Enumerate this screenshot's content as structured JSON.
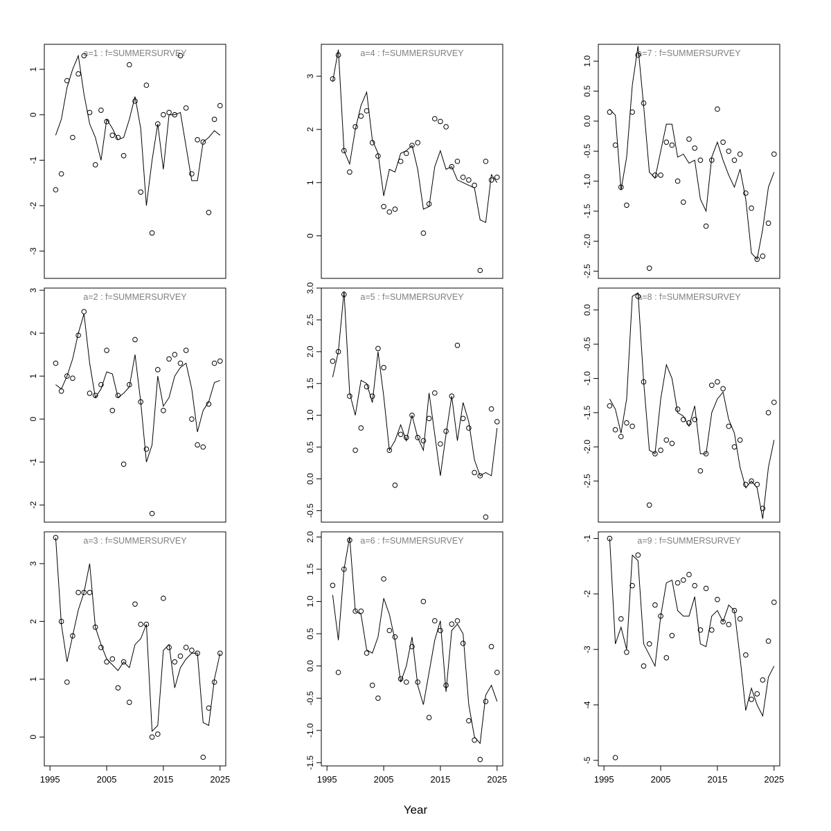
{
  "chart_data": {
    "type": "line",
    "subtype": "multi-panel scatter with fitted line, 3x3 grid (row-major)",
    "xlabel": "Year",
    "xlim": [
      1994,
      2026
    ],
    "x_ticks": [
      1995,
      2005,
      2015,
      2025
    ],
    "years": [
      1996,
      1997,
      1998,
      1999,
      2000,
      2001,
      2002,
      2003,
      2004,
      2005,
      2006,
      2007,
      2008,
      2009,
      2010,
      2011,
      2012,
      2013,
      2014,
      2015,
      2016,
      2017,
      2018,
      2019,
      2020,
      2021,
      2022,
      2023,
      2024,
      2025
    ],
    "legend": {
      "points": "observed (open circles)",
      "line": "fitted (solid line)"
    },
    "styles": {
      "background": "#ffffff",
      "line_color": "#000000",
      "point_color": "#000000",
      "axis_color": "#000000",
      "title_color": "#808080"
    },
    "panels": [
      {
        "id": "a1",
        "title": "a=1  :  f=SUMMERSURVEY",
        "ylim": [
          -3.6,
          1.55
        ],
        "yticks": [
          "-3",
          "-2",
          "-1",
          "0",
          "1"
        ],
        "points": [
          -1.65,
          -1.3,
          0.75,
          -0.5,
          0.9,
          1.3,
          0.05,
          -1.1,
          0.1,
          -0.15,
          -0.45,
          -0.5,
          -0.9,
          1.1,
          0.3,
          -1.7,
          0.65,
          -2.6,
          -0.2,
          0.0,
          0.05,
          0.0,
          1.3,
          0.15,
          -1.3,
          -0.55,
          -0.6,
          -2.15,
          -0.1,
          0.2
        ],
        "line": [
          -0.45,
          -0.1,
          0.6,
          1.0,
          1.3,
          0.45,
          -0.2,
          -0.5,
          -1.0,
          -0.1,
          -0.3,
          -0.55,
          -0.5,
          -0.1,
          0.4,
          -0.3,
          -2.0,
          -1.0,
          -0.2,
          -1.2,
          0.0,
          0.0,
          0.05,
          -0.7,
          -1.45,
          -1.45,
          -0.6,
          -0.5,
          -0.35,
          -0.45
        ]
      },
      {
        "id": "a4",
        "title": "a=4  :  f=SUMMERSURVEY",
        "ylim": [
          -0.8,
          3.6
        ],
        "yticks": [
          "0",
          "1",
          "2",
          "3"
        ],
        "points": [
          2.95,
          3.4,
          1.6,
          1.2,
          2.05,
          2.25,
          2.35,
          1.75,
          1.5,
          0.55,
          0.45,
          0.5,
          1.4,
          1.55,
          1.7,
          1.75,
          0.05,
          0.6,
          2.2,
          2.15,
          2.05,
          1.3,
          1.4,
          1.1,
          1.05,
          0.95,
          -0.65,
          1.4,
          1.05,
          1.1
        ],
        "line": [
          2.9,
          3.5,
          1.6,
          1.35,
          2.0,
          2.45,
          2.7,
          1.8,
          1.55,
          0.75,
          1.25,
          1.2,
          1.55,
          1.6,
          1.7,
          1.25,
          0.5,
          0.55,
          1.3,
          1.6,
          1.25,
          1.3,
          1.05,
          1.0,
          0.95,
          0.9,
          0.3,
          0.25,
          1.15,
          1.0
        ]
      },
      {
        "id": "a7",
        "title": "a=7  :  f=SUMMERSURVEY",
        "ylim": [
          -2.62,
          1.28
        ],
        "yticks": [
          "-2.5",
          "-2.0",
          "-1.5",
          "-1.0",
          "-0.5",
          "0.0",
          "0.5",
          "1.0"
        ],
        "points": [
          0.15,
          -0.4,
          -1.1,
          -1.4,
          0.15,
          1.1,
          0.3,
          -2.45,
          -0.9,
          -0.9,
          -0.35,
          -0.4,
          -1.0,
          -1.35,
          -0.3,
          -0.45,
          -0.65,
          -1.75,
          -0.65,
          0.2,
          -0.35,
          -0.5,
          -0.65,
          -0.55,
          -1.2,
          -1.45,
          -2.3,
          -2.25,
          -1.7,
          -0.55
        ],
        "line": [
          0.2,
          0.1,
          -1.15,
          -0.6,
          0.6,
          1.25,
          0.25,
          -0.85,
          -0.95,
          -0.5,
          -0.05,
          -0.05,
          -0.6,
          -0.55,
          -0.7,
          -0.65,
          -1.3,
          -1.5,
          -0.6,
          -0.35,
          -0.65,
          -0.9,
          -1.1,
          -0.8,
          -1.3,
          -2.2,
          -2.3,
          -1.8,
          -1.1,
          -0.85
        ]
      },
      {
        "id": "a2",
        "title": "a=2  :  f=SUMMERSURVEY",
        "ylim": [
          -2.4,
          3.05
        ],
        "yticks": [
          "-2",
          "-1",
          "0",
          "1",
          "2",
          "3"
        ],
        "points": [
          1.3,
          0.65,
          1.0,
          0.95,
          1.95,
          2.5,
          0.6,
          0.55,
          0.8,
          1.6,
          0.2,
          0.55,
          -1.05,
          0.8,
          1.85,
          0.4,
          -0.7,
          -2.2,
          1.15,
          0.2,
          1.4,
          1.5,
          1.3,
          1.6,
          0.0,
          -0.6,
          -0.65,
          0.35,
          1.3,
          1.35
        ],
        "line": [
          0.8,
          0.7,
          1.0,
          1.4,
          2.0,
          2.45,
          1.3,
          0.5,
          0.7,
          1.1,
          1.05,
          0.5,
          0.6,
          0.75,
          1.5,
          0.4,
          -1.0,
          -0.6,
          1.0,
          0.3,
          0.5,
          1.0,
          1.2,
          1.3,
          0.7,
          -0.3,
          0.2,
          0.4,
          0.85,
          0.9
        ]
      },
      {
        "id": "a5",
        "title": "a=5  :  f=SUMMERSURVEY",
        "ylim": [
          -0.68,
          3.0
        ],
        "yticks": [
          "-0.5",
          "0.0",
          "0.5",
          "1.0",
          "1.5",
          "2.0",
          "2.5",
          "3.0"
        ],
        "points": [
          1.85,
          2.0,
          2.9,
          1.3,
          0.45,
          0.8,
          1.45,
          1.3,
          2.05,
          1.75,
          0.45,
          -0.1,
          0.7,
          0.65,
          1.0,
          0.65,
          0.6,
          0.95,
          1.35,
          0.55,
          0.75,
          1.3,
          2.1,
          0.95,
          0.8,
          0.1,
          0.05,
          -0.6,
          1.1,
          0.9
        ],
        "line": [
          1.6,
          2.0,
          2.95,
          1.35,
          1.0,
          1.55,
          1.5,
          1.2,
          2.0,
          1.3,
          0.45,
          0.6,
          0.85,
          0.6,
          1.0,
          0.65,
          0.45,
          1.35,
          0.7,
          0.05,
          0.7,
          1.3,
          0.6,
          1.2,
          0.9,
          0.3,
          0.05,
          0.1,
          0.05,
          0.8
        ]
      },
      {
        "id": "a8",
        "title": "a=8  :  f=SUMMERSURVEY",
        "ylim": [
          -3.1,
          0.32
        ],
        "yticks": [
          "-2.5",
          "-2.0",
          "-1.5",
          "-1.0",
          "-0.5",
          "0.0"
        ],
        "points": [
          -1.4,
          -1.75,
          -1.85,
          -1.65,
          -1.7,
          0.2,
          -1.05,
          -2.85,
          -2.1,
          -2.05,
          -1.9,
          -1.95,
          -1.45,
          -1.6,
          -1.65,
          -1.6,
          -2.35,
          -2.1,
          -1.1,
          -1.05,
          -1.15,
          -1.7,
          -2.0,
          -1.9,
          -2.55,
          -2.5,
          -2.55,
          -2.9,
          -1.5,
          -1.35
        ],
        "line": [
          -1.3,
          -1.45,
          -1.8,
          -1.3,
          0.2,
          0.25,
          -1.05,
          -2.05,
          -2.1,
          -1.3,
          -0.8,
          -1.0,
          -1.5,
          -1.55,
          -1.7,
          -1.4,
          -2.1,
          -2.1,
          -1.5,
          -1.3,
          -1.2,
          -1.6,
          -1.8,
          -2.3,
          -2.6,
          -2.5,
          -2.6,
          -3.05,
          -2.3,
          -1.9
        ]
      },
      {
        "id": "a3",
        "title": "a=3  :  f=SUMMERSURVEY",
        "ylim": [
          -0.5,
          3.55
        ],
        "yticks": [
          "0",
          "1",
          "2",
          "3"
        ],
        "points": [
          3.45,
          2.0,
          0.95,
          1.75,
          2.5,
          2.5,
          2.5,
          1.9,
          1.55,
          1.3,
          1.35,
          0.85,
          1.3,
          0.6,
          2.3,
          1.95,
          1.95,
          0.0,
          0.05,
          2.4,
          1.55,
          1.3,
          1.4,
          1.55,
          1.5,
          1.45,
          -0.35,
          0.5,
          0.95,
          1.45
        ],
        "line": [
          3.45,
          1.95,
          1.3,
          1.75,
          2.2,
          2.5,
          3.0,
          1.9,
          1.6,
          1.35,
          1.25,
          1.15,
          1.3,
          1.2,
          1.6,
          1.7,
          1.95,
          0.1,
          0.2,
          1.5,
          1.6,
          0.85,
          1.2,
          1.35,
          1.45,
          1.45,
          0.25,
          0.2,
          1.0,
          1.45
        ]
      },
      {
        "id": "a6",
        "title": "a=6  :  f=SUMMERSURVEY",
        "ylim": [
          -1.55,
          2.08
        ],
        "yticks": [
          "-1.5",
          "-1.0",
          "-0.5",
          "0.0",
          "0.5",
          "1.0",
          "1.5",
          "2.0"
        ],
        "points": [
          1.25,
          -0.1,
          1.5,
          1.95,
          0.85,
          0.85,
          0.2,
          -0.3,
          -0.5,
          1.35,
          0.55,
          0.45,
          -0.2,
          -0.25,
          0.3,
          -0.25,
          1.0,
          -0.8,
          0.7,
          0.55,
          -0.3,
          0.65,
          0.7,
          0.35,
          -0.85,
          -1.15,
          -1.45,
          -0.55,
          0.3,
          -0.1
        ],
        "line": [
          1.1,
          0.4,
          1.5,
          2.0,
          0.85,
          0.8,
          0.25,
          0.2,
          0.45,
          1.05,
          0.8,
          0.4,
          -0.25,
          0.0,
          0.45,
          -0.3,
          -0.6,
          -0.1,
          0.4,
          0.7,
          -0.4,
          0.55,
          0.65,
          0.5,
          -0.6,
          -1.1,
          -1.2,
          -0.45,
          -0.3,
          -0.55
        ]
      },
      {
        "id": "a9",
        "title": "a=9  :  f=SUMMERSURVEY",
        "ylim": [
          -5.1,
          -0.88
        ],
        "yticks": [
          "-5",
          "-4",
          "-3",
          "-2",
          "-1"
        ],
        "points": [
          -1.0,
          -4.95,
          -2.45,
          -3.05,
          -1.85,
          -1.3,
          -3.3,
          -2.9,
          -2.2,
          -2.4,
          -3.15,
          -2.75,
          -1.8,
          -1.75,
          -1.65,
          -1.85,
          -2.65,
          -1.9,
          -2.65,
          -2.1,
          -2.5,
          -2.55,
          -2.3,
          -2.45,
          -3.1,
          -3.9,
          -3.8,
          -3.55,
          -2.85,
          -2.15
        ],
        "line": [
          -1.0,
          -2.9,
          -2.6,
          -3.0,
          -1.3,
          -1.4,
          -2.9,
          -3.1,
          -3.3,
          -2.4,
          -1.8,
          -1.75,
          -2.3,
          -2.4,
          -2.4,
          -2.05,
          -2.9,
          -2.95,
          -2.4,
          -2.3,
          -2.5,
          -2.2,
          -2.3,
          -3.15,
          -4.1,
          -3.7,
          -4.0,
          -4.2,
          -3.5,
          -3.3
        ]
      }
    ]
  }
}
